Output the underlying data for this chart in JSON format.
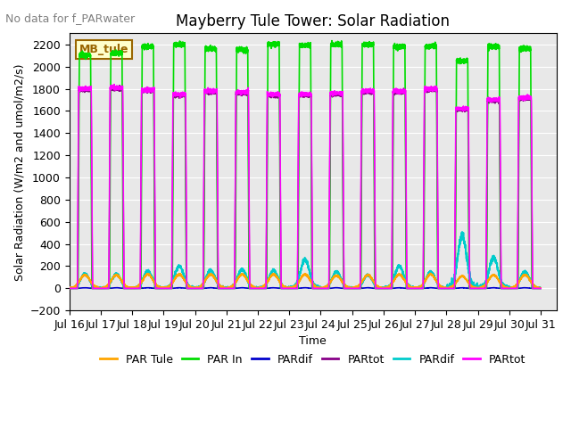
{
  "title": "Mayberry Tule Tower: Solar Radiation",
  "subtitle": "No data for f_PARwater",
  "ylabel": "Solar Radiation (W/m2 and umol/m2/s)",
  "xlabel": "Time",
  "ylim": [
    -200,
    2300
  ],
  "yticks": [
    -200,
    0,
    200,
    400,
    600,
    800,
    1000,
    1200,
    1400,
    1600,
    1800,
    2000,
    2200
  ],
  "xlim": [
    0,
    15.5
  ],
  "xtick_labels": [
    "Jul 16",
    "Jul 17",
    "Jul 18",
    "Jul 19",
    "Jul 20",
    "Jul 21",
    "Jul 22",
    "Jul 23",
    "Jul 24",
    "Jul 25",
    "Jul 26",
    "Jul 27",
    "Jul 28",
    "Jul 29",
    "Jul 30",
    "Jul 31"
  ],
  "xtick_positions": [
    0,
    1,
    2,
    3,
    4,
    5,
    6,
    7,
    8,
    9,
    10,
    11,
    12,
    13,
    14,
    15
  ],
  "background_color": "#e8e8e8",
  "legend_box_color": "#ffffcc",
  "legend_box_border": "#996600",
  "legend_text_color": "#800000",
  "legend_box_label": "MB_tule",
  "series": {
    "PAR_Tule": {
      "color": "#ffa500",
      "label": "PAR Tule",
      "lw": 1.2
    },
    "PAR_In": {
      "color": "#00dd00",
      "label": "PAR In",
      "lw": 1.2
    },
    "PARdif_dark": {
      "color": "#0000cc",
      "label": "PARdif",
      "lw": 1.2
    },
    "PARtot_dark": {
      "color": "#880088",
      "label": "PARtot",
      "lw": 1.2
    },
    "PARdif_cyan": {
      "color": "#00cccc",
      "label": "PARdif",
      "lw": 1.2
    },
    "PARtot_mag": {
      "color": "#ff00ff",
      "label": "PARtot",
      "lw": 1.2
    }
  },
  "n_days": 15,
  "pts_per_day": 500,
  "par_in_peaks": [
    2100,
    2120,
    2180,
    2200,
    2160,
    2150,
    2200,
    2190,
    2200,
    2200,
    2180,
    2180,
    2050,
    2180,
    2160
  ],
  "partot_mag_peaks": [
    1800,
    1810,
    1790,
    1750,
    1780,
    1770,
    1750,
    1750,
    1760,
    1780,
    1780,
    1800,
    1620,
    1700,
    1720
  ],
  "pardif_cyan_peaks": [
    130,
    130,
    155,
    200,
    160,
    170,
    160,
    260,
    150,
    120,
    200,
    150,
    480,
    280,
    150
  ],
  "par_tule_peaks": [
    120,
    120,
    125,
    125,
    125,
    125,
    125,
    125,
    115,
    120,
    125,
    125,
    110,
    120,
    120
  ],
  "title_fontsize": 12,
  "label_fontsize": 9,
  "tick_fontsize": 9,
  "subtitle_fontsize": 9
}
